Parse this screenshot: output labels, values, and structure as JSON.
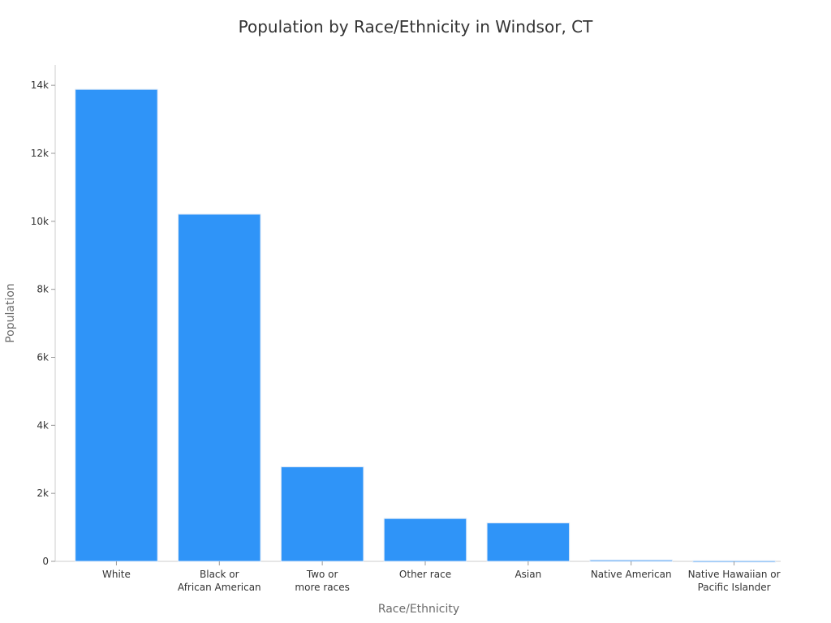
{
  "chart_data": {
    "type": "bar",
    "title": "Population by Race/Ethnicity in Windsor, CT",
    "xlabel": "Race/Ethnicity",
    "ylabel": "Population",
    "categories": [
      [
        "White"
      ],
      [
        "Black or",
        "African American"
      ],
      [
        "Two or",
        "more races"
      ],
      [
        "Other race"
      ],
      [
        "Asian"
      ],
      [
        "Native American"
      ],
      [
        "Native Hawaiian or",
        "Pacific Islander"
      ]
    ],
    "values": [
      13880,
      10210,
      2780,
      1260,
      1130,
      40,
      15
    ],
    "ylim": [
      0,
      14600
    ],
    "yticks": [
      0,
      2000,
      4000,
      6000,
      8000,
      10000,
      12000,
      14000
    ],
    "ytick_labels": [
      "0",
      "2k",
      "4k",
      "6k",
      "8k",
      "10k",
      "12k",
      "14k"
    ],
    "grid": false,
    "bar_color": "#2f94f8",
    "bar_edge_color": "#dde9f7"
  }
}
